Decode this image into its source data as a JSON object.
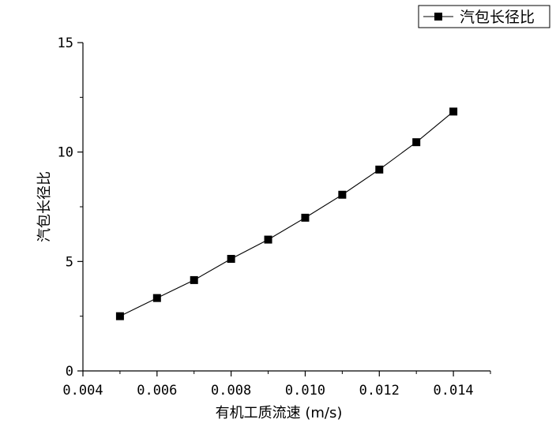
{
  "chart_data": {
    "type": "line",
    "xlabel": "有机工质流速 (m/s)",
    "ylabel": "汽包长径比",
    "xlim": [
      0.004,
      0.015
    ],
    "ylim": [
      0,
      15
    ],
    "xticks": [
      "0.004",
      "0.006",
      "0.008",
      "0.010",
      "0.012",
      "0.014"
    ],
    "yticks": [
      "0",
      "5",
      "10",
      "15"
    ],
    "grid": false,
    "legend_position": "top-right",
    "series": [
      {
        "name": "汽包长径比",
        "marker": "square",
        "color": "#000000",
        "x": [
          0.005,
          0.006,
          0.007,
          0.008,
          0.009,
          0.01,
          0.011,
          0.012,
          0.013,
          0.014
        ],
        "y": [
          2.5,
          3.33,
          4.15,
          5.12,
          6.0,
          7.0,
          8.05,
          9.2,
          10.45,
          11.85
        ]
      }
    ]
  }
}
